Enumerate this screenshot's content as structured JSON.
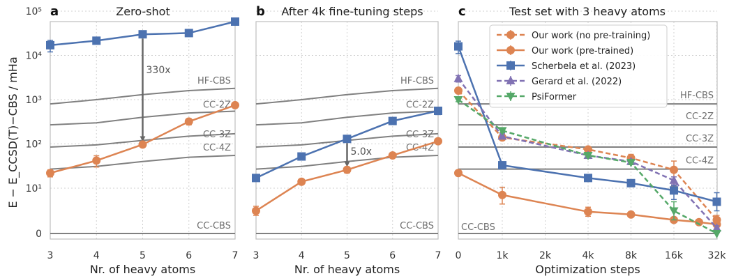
{
  "colors": {
    "orange": "#dd8452",
    "blue": "#4c72b0",
    "purple": "#8172b3",
    "green": "#55a868",
    "reference": "#808080",
    "arrow": "#666666",
    "grid": "#d0d0d0",
    "frame": "#bdbdbd"
  },
  "ylabel": "E − E_CCSD(T)−CBS / mHa",
  "chart_data": [
    {
      "type": "line",
      "panel": "a",
      "title": "Zero-shot",
      "xlabel": "Nr. of heavy atoms",
      "x_ticks": [
        "3",
        "4",
        "5",
        "6",
        "7"
      ],
      "y_scale": "symlog",
      "y_ticks": [
        "0",
        "10¹",
        "10²",
        "10³",
        "10⁴",
        "10⁵"
      ],
      "grid": true,
      "reference_lines": [
        {
          "name": "HF-CBS",
          "x": [
            3,
            4,
            5,
            6,
            7
          ],
          "y": [
            800,
            1000,
            1300,
            1600,
            1800
          ]
        },
        {
          "name": "CC-2Z",
          "x": [
            3,
            4,
            5,
            6,
            7
          ],
          "y": [
            270,
            300,
            400,
            500,
            550
          ]
        },
        {
          "name": "CC-3Z",
          "x": [
            3,
            4,
            5,
            6,
            7
          ],
          "y": [
            85,
            95,
            120,
            150,
            170
          ]
        },
        {
          "name": "CC-4Z",
          "x": [
            3,
            4,
            5,
            6,
            7
          ],
          "y": [
            27,
            31,
            40,
            50,
            55
          ]
        },
        {
          "name": "CC-CBS",
          "x": [
            3,
            4,
            5,
            6,
            7
          ],
          "y": [
            0,
            0,
            0,
            0,
            0
          ]
        }
      ],
      "series": [
        {
          "color_key": "blue",
          "marker": "square",
          "x": [
            3,
            4,
            5,
            6,
            7
          ],
          "y": [
            17000,
            21500,
            30000,
            32000,
            58000
          ],
          "err": [
            5000,
            2500,
            3000,
            2500,
            10000
          ]
        },
        {
          "color_key": "orange",
          "marker": "circle",
          "x": [
            3,
            4,
            5,
            6,
            7
          ],
          "y": [
            22,
            42,
            97,
            320,
            750
          ],
          "err": [
            4,
            12,
            10,
            50,
            80
          ]
        }
      ],
      "annotation": {
        "text": "330x",
        "x": 5,
        "y_from": 30000,
        "y_to": 97
      }
    },
    {
      "type": "line",
      "panel": "b",
      "title": "After 4k fine-tuning steps",
      "xlabel": "Nr. of heavy atoms",
      "x_ticks": [
        "3",
        "4",
        "5",
        "6",
        "7"
      ],
      "y_scale": "symlog",
      "grid": true,
      "reference_lines": [
        {
          "name": "HF-CBS",
          "x": [
            3,
            4,
            5,
            6,
            7
          ],
          "y": [
            800,
            1000,
            1300,
            1600,
            1800
          ]
        },
        {
          "name": "CC-2Z",
          "x": [
            3,
            4,
            5,
            6,
            7
          ],
          "y": [
            270,
            300,
            400,
            500,
            550
          ]
        },
        {
          "name": "CC-3Z",
          "x": [
            3,
            4,
            5,
            6,
            7
          ],
          "y": [
            85,
            95,
            120,
            150,
            170
          ]
        },
        {
          "name": "CC-4Z",
          "x": [
            3,
            4,
            5,
            6,
            7
          ],
          "y": [
            27,
            31,
            40,
            50,
            55
          ]
        },
        {
          "name": "CC-CBS",
          "x": [
            3,
            4,
            5,
            6,
            7
          ],
          "y": [
            0,
            0,
            0,
            0,
            0
          ]
        }
      ],
      "series": [
        {
          "color_key": "blue",
          "marker": "square",
          "x": [
            3,
            4,
            5,
            6,
            7
          ],
          "y": [
            17,
            52,
            130,
            330,
            560
          ],
          "err": [
            2,
            5,
            10,
            40,
            100
          ]
        },
        {
          "color_key": "orange",
          "marker": "circle",
          "x": [
            3,
            4,
            5,
            6,
            7
          ],
          "y": [
            5,
            14,
            26,
            55,
            115
          ],
          "err": [
            1,
            1,
            4,
            4,
            10
          ]
        }
      ],
      "annotation": {
        "text": "5.0x",
        "x": 5,
        "y_from": 130,
        "y_to": 26
      }
    },
    {
      "type": "line",
      "panel": "c",
      "title": "Test set with 3 heavy atoms",
      "xlabel": "Optimization steps",
      "x_scale": "symlog",
      "x_ticks": [
        "0",
        "1k",
        "2k",
        "4k",
        "8k",
        "16k",
        "32k"
      ],
      "y_scale": "symlog",
      "grid": true,
      "reference_lines": [
        {
          "name": "HF-CBS",
          "y": 800
        },
        {
          "name": "CC-2Z",
          "y": 270
        },
        {
          "name": "CC-3Z",
          "y": 85
        },
        {
          "name": "CC-4Z",
          "y": 27
        },
        {
          "name": "CC-CBS",
          "y": 0
        }
      ],
      "legend_position": "top-center",
      "series": [
        {
          "name": "Our work (no pre-training)",
          "color_key": "orange",
          "marker": "circle",
          "dash": "dashed",
          "x": [
            0,
            1000,
            4000,
            8000,
            16000,
            32000
          ],
          "y": [
            1600,
            140,
            75,
            48,
            26,
            3
          ],
          "err": [
            200,
            15,
            8,
            10,
            15,
            1
          ]
        },
        {
          "name": "Our work (pre-trained)",
          "color_key": "orange",
          "marker": "circle",
          "dash": "solid",
          "x": [
            0,
            1000,
            4000,
            8000,
            16000,
            24000,
            32000
          ],
          "y": [
            22,
            8.5,
            4.8,
            4.2,
            3.0,
            2.5,
            2.0
          ],
          "err": [
            3,
            2,
            1,
            0.5,
            0.5,
            0.3,
            0.5
          ]
        },
        {
          "name": "Scherbela et al. (2023)",
          "color_key": "blue",
          "marker": "square",
          "dash": "solid",
          "x": [
            0,
            1000,
            4000,
            8000,
            16000,
            32000
          ],
          "y": [
            16000,
            33,
            17,
            13,
            9.5,
            7
          ],
          "err": [
            5000,
            3,
            2,
            1,
            2,
            2
          ]
        },
        {
          "name": "Gerard et al. (2022)",
          "color_key": "purple",
          "marker": "triangle-up",
          "dash": "dashed",
          "x": [
            0,
            1000,
            4000,
            8000,
            16000,
            32000
          ],
          "y": [
            3000,
            150,
            55,
            40,
            15,
            1.2
          ],
          "err": [
            500,
            20,
            8,
            5,
            3,
            0.5
          ]
        },
        {
          "name": "PsiFormer",
          "color_key": "green",
          "marker": "triangle-down",
          "dash": "dashed",
          "x": [
            0,
            1000,
            4000,
            8000,
            16000,
            32000
          ],
          "y": [
            1000,
            200,
            55,
            38,
            5,
            0
          ],
          "err": [
            100,
            20,
            5,
            4,
            2,
            0
          ]
        }
      ]
    }
  ]
}
